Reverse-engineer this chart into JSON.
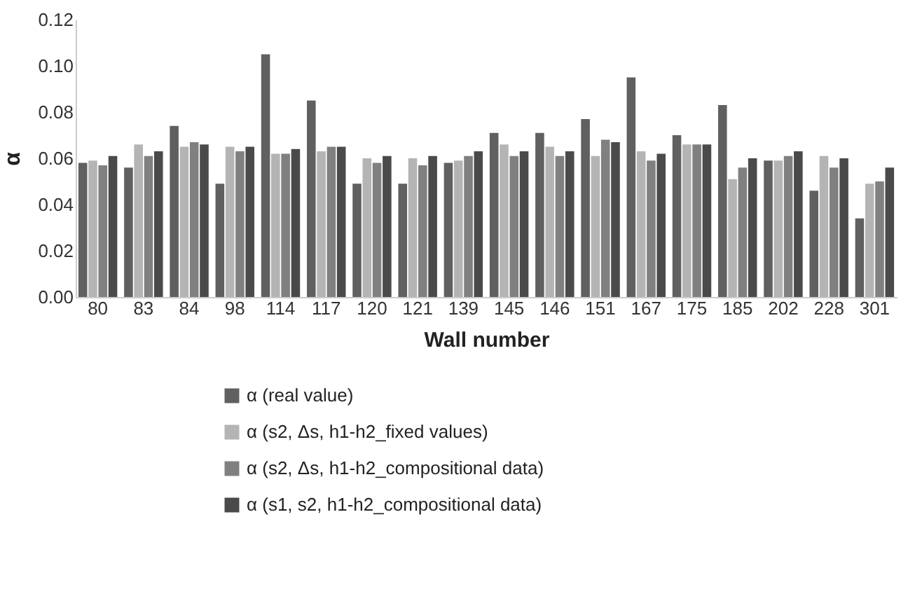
{
  "chart_data": {
    "type": "bar",
    "xlabel": "Wall number",
    "ylabel": "α",
    "categories": [
      "80",
      "83",
      "84",
      "98",
      "114",
      "117",
      "120",
      "121",
      "139",
      "145",
      "146",
      "151",
      "167",
      "175",
      "185",
      "202",
      "228",
      "301"
    ],
    "ylim": [
      0,
      0.12
    ],
    "yticks": [
      {
        "value": 0,
        "label": "0.00"
      },
      {
        "value": 0.02,
        "label": "0.02"
      },
      {
        "value": 0.04,
        "label": "0.04"
      },
      {
        "value": 0.06,
        "label": "0.06"
      },
      {
        "value": 0.08,
        "label": "0.08"
      },
      {
        "value": 0.1,
        "label": "0.10"
      },
      {
        "value": 0.12,
        "label": "0.12"
      }
    ],
    "grid": false,
    "legend": "bottom",
    "series": [
      {
        "name": "α (real value)",
        "color": "#606060",
        "values": [
          0.058,
          0.056,
          0.074,
          0.049,
          0.105,
          0.085,
          0.049,
          0.049,
          0.058,
          0.071,
          0.071,
          0.077,
          0.095,
          0.07,
          0.083,
          0.059,
          0.046,
          0.034
        ]
      },
      {
        "name": "α (s2, Δs, h1-h2_fixed values)",
        "color": "#b4b4b4",
        "values": [
          0.059,
          0.066,
          0.065,
          0.065,
          0.062,
          0.063,
          0.06,
          0.06,
          0.059,
          0.066,
          0.065,
          0.061,
          0.063,
          0.066,
          0.051,
          0.059,
          0.061,
          0.049
        ]
      },
      {
        "name": "α (s2, Δs, h1-h2_compositional data)",
        "color": "#808080",
        "values": [
          0.057,
          0.061,
          0.067,
          0.063,
          0.062,
          0.065,
          0.058,
          0.057,
          0.061,
          0.061,
          0.061,
          0.068,
          0.059,
          0.066,
          0.056,
          0.061,
          0.056,
          0.05
        ]
      },
      {
        "name": "α (s1, s2, h1-h2_compositional data)",
        "color": "#4a4a4a",
        "values": [
          0.061,
          0.063,
          0.066,
          0.065,
          0.064,
          0.065,
          0.061,
          0.061,
          0.063,
          0.063,
          0.063,
          0.067,
          0.062,
          0.066,
          0.06,
          0.063,
          0.06,
          0.056
        ]
      }
    ]
  }
}
